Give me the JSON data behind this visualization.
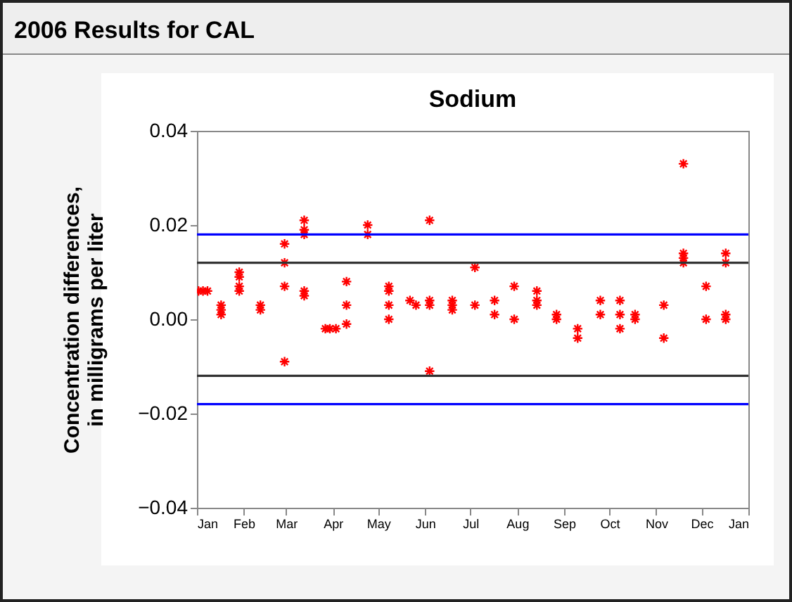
{
  "chart_data": {
    "type": "scatter",
    "title": "2006 Results for CAL",
    "subtitle": "Sodium",
    "ylabel": "Concentration differences,\nin milligrams per liter",
    "x": [
      "2006-01-02",
      "2006-01-05",
      "2006-01-08",
      "2006-01-17",
      "2006-01-17",
      "2006-01-17",
      "2006-01-29",
      "2006-01-29",
      "2006-01-29",
      "2006-01-29",
      "2006-02-12",
      "2006-02-12",
      "2006-02-28",
      "2006-02-28",
      "2006-02-28",
      "2006-02-28",
      "2006-03-13",
      "2006-03-13",
      "2006-03-13",
      "2006-03-13",
      "2006-03-13",
      "2006-03-27",
      "2006-03-30",
      "2006-04-03",
      "2006-04-10",
      "2006-04-10",
      "2006-04-10",
      "2006-04-24",
      "2006-04-24",
      "2006-05-08",
      "2006-05-08",
      "2006-05-08",
      "2006-05-08",
      "2006-05-22",
      "2006-05-26",
      "2006-06-04",
      "2006-06-04",
      "2006-06-04",
      "2006-06-04",
      "2006-06-19",
      "2006-06-19",
      "2006-06-19",
      "2006-07-04",
      "2006-07-04",
      "2006-07-17",
      "2006-07-17",
      "2006-07-30",
      "2006-07-30",
      "2006-08-14",
      "2006-08-14",
      "2006-08-14",
      "2006-08-27",
      "2006-08-27",
      "2006-09-10",
      "2006-09-10",
      "2006-09-25",
      "2006-09-25",
      "2006-10-08",
      "2006-10-08",
      "2006-10-08",
      "2006-10-18",
      "2006-10-18",
      "2006-11-06",
      "2006-11-06",
      "2006-11-19",
      "2006-11-19",
      "2006-11-19",
      "2006-11-19",
      "2006-12-04",
      "2006-12-04",
      "2006-12-17",
      "2006-12-17",
      "2006-12-17",
      "2006-12-17"
    ],
    "series": [
      {
        "color": "#ff0000",
        "values": [
          0.006,
          0.006,
          0.006,
          0.003,
          0.002,
          0.001,
          0.01,
          0.009,
          0.007,
          0.006,
          0.003,
          0.002,
          0.016,
          0.012,
          0.007,
          -0.009,
          0.021,
          0.019,
          0.018,
          0.006,
          0.005,
          -0.002,
          -0.002,
          -0.002,
          0.008,
          0.003,
          -0.001,
          0.02,
          0.018,
          0.007,
          0.006,
          0.003,
          0.0,
          0.004,
          0.003,
          0.021,
          0.004,
          0.003,
          -0.011,
          0.004,
          0.003,
          0.002,
          0.011,
          0.003,
          0.004,
          0.001,
          0.007,
          0.0,
          0.006,
          0.004,
          0.003,
          0.001,
          0.0,
          -0.002,
          -0.004,
          0.004,
          0.001,
          0.004,
          0.001,
          -0.002,
          0.001,
          0.0,
          0.003,
          -0.004,
          0.033,
          0.014,
          0.013,
          0.012,
          0.007,
          0.0,
          0.014,
          0.012,
          0.001,
          0.0
        ]
      }
    ],
    "marker": "cross",
    "xlim": [
      "2006-01-01",
      "2007-01-01"
    ],
    "xticks": [
      {
        "value": "2006-01-01",
        "label": "Jan"
      },
      {
        "value": "2006-02-01",
        "label": "Feb"
      },
      {
        "value": "2006-03-01",
        "label": "Mar"
      },
      {
        "value": "2006-04-01",
        "label": "Apr"
      },
      {
        "value": "2006-05-01",
        "label": "May"
      },
      {
        "value": "2006-06-01",
        "label": "Jun"
      },
      {
        "value": "2006-07-01",
        "label": "Jul"
      },
      {
        "value": "2006-08-01",
        "label": "Aug"
      },
      {
        "value": "2006-09-01",
        "label": "Sep"
      },
      {
        "value": "2006-10-01",
        "label": "Oct"
      },
      {
        "value": "2006-11-01",
        "label": "Nov"
      },
      {
        "value": "2006-12-01",
        "label": "Dec"
      },
      {
        "value": "2007-01-01",
        "label": "Jan"
      }
    ],
    "ylim": [
      -0.04,
      0.04
    ],
    "yticks": [
      {
        "value": -0.04,
        "label": "−0.04"
      },
      {
        "value": -0.02,
        "label": "−0.02"
      },
      {
        "value": 0,
        "label": "0.00"
      },
      0.02,
      0.04
    ],
    "ref_lines": [
      {
        "axis": "y",
        "value": 0.018,
        "color": "#0000ff"
      },
      {
        "axis": "y",
        "value": -0.018,
        "color": "#0000ff"
      },
      {
        "axis": "y",
        "value": 0.012,
        "color": "#333333"
      },
      {
        "axis": "y",
        "value": -0.012,
        "color": "#333333"
      }
    ]
  }
}
